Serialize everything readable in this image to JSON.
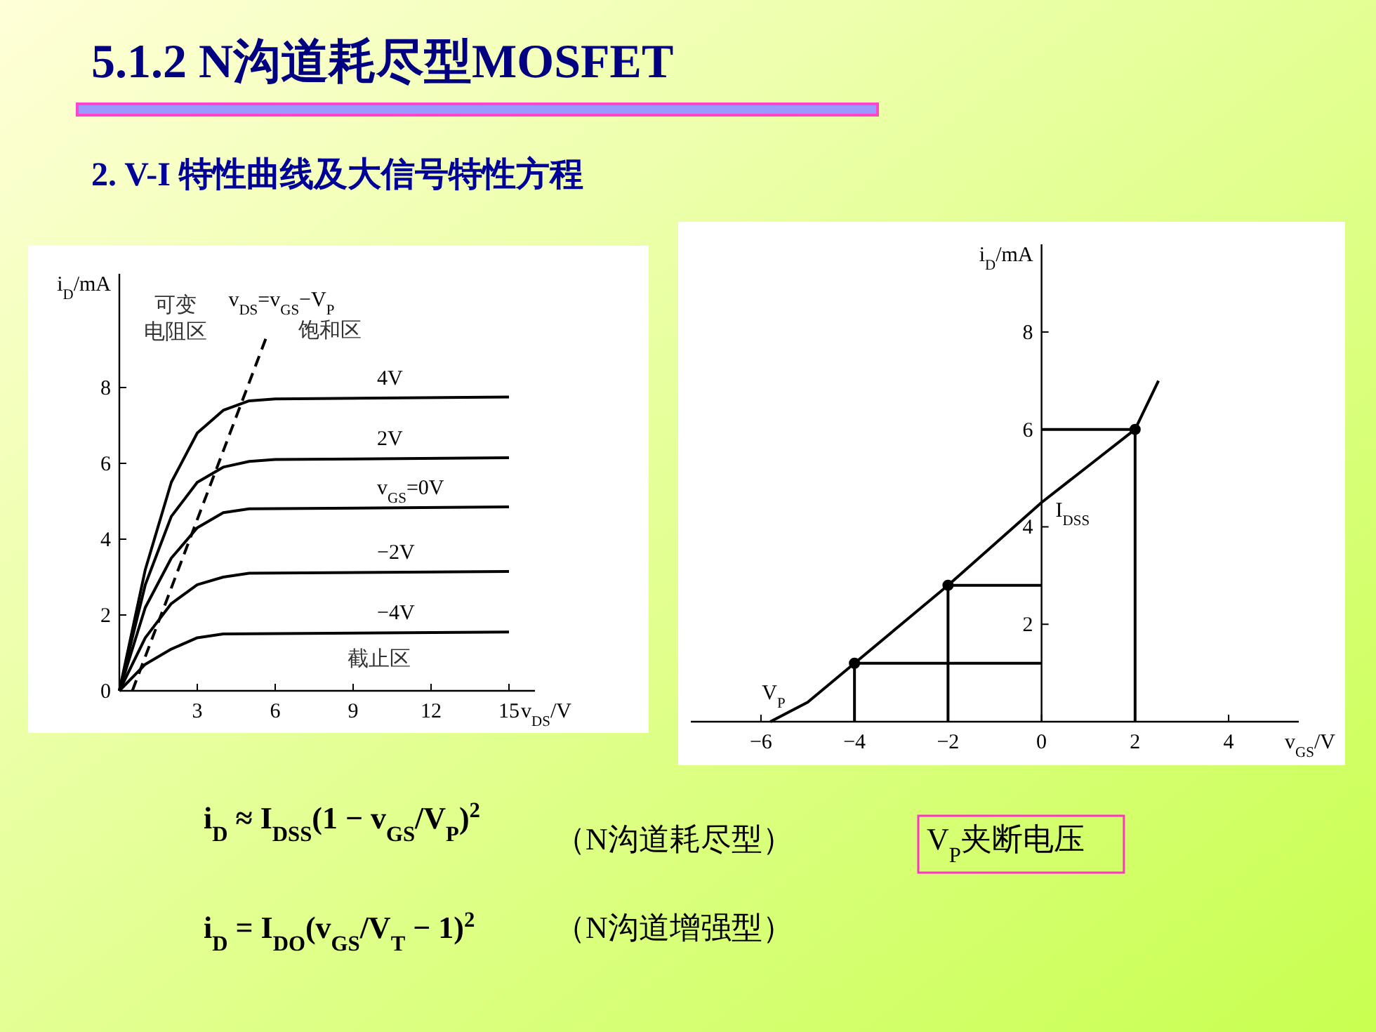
{
  "chart_data": [
    {
      "type": "other",
      "title": "5.1.2 N沟道耗尽型MOSFET",
      "subtitle": "2. V-I 特性曲线及大信号特性方程",
      "annotations": [
        "i$_{D}$ ≈ I$_{DSS}$(1 − v$_{GS}$/V$_{P}$)$^{2}$",
        "（N沟道耗尽型）",
        "V$_{P}$夹断电压",
        "i$_{D}$ = I$_{DO}$(v$_{GS}$/V$_{T}$ − 1)$^{2}$",
        "（N沟道增强型）"
      ]
    },
    {
      "type": "line",
      "xlabel": "v$_{DS}$/V",
      "ylabel": "i$_{D}$/mA",
      "xlim": [
        0,
        16
      ],
      "ylim": [
        0,
        11
      ],
      "xticks": [
        3,
        6,
        9,
        12,
        15
      ],
      "yticks": [
        0,
        2,
        4,
        6,
        8
      ],
      "annotations": [
        "可变",
        "电阻区",
        "饱和区",
        "截止区"
      ],
      "series": [
        {
          "name": "4V",
          "color": "#000000",
          "x": [
            0,
            1,
            2,
            3,
            4,
            5,
            6,
            15
          ],
          "values": [
            0,
            3.2,
            5.5,
            6.8,
            7.4,
            7.65,
            7.7,
            7.75
          ]
        },
        {
          "name": "2V",
          "color": "#000000",
          "x": [
            0,
            1,
            2,
            3,
            4,
            5,
            6,
            15
          ],
          "values": [
            0,
            2.8,
            4.6,
            5.5,
            5.9,
            6.05,
            6.1,
            6.15
          ]
        },
        {
          "name": "v$_{GS}$=0V",
          "color": "#000000",
          "x": [
            0,
            1,
            2,
            3,
            4,
            5,
            15
          ],
          "values": [
            0,
            2.2,
            3.5,
            4.3,
            4.7,
            4.8,
            4.85
          ]
        },
        {
          "name": "−2V",
          "color": "#000000",
          "x": [
            0,
            1,
            2,
            3,
            4,
            5,
            15
          ],
          "values": [
            0,
            1.4,
            2.3,
            2.8,
            3.0,
            3.1,
            3.15
          ]
        },
        {
          "name": "−4V",
          "color": "#000000",
          "x": [
            0,
            1,
            2,
            3,
            4,
            15
          ],
          "values": [
            0,
            0.7,
            1.1,
            1.4,
            1.5,
            1.55
          ]
        },
        {
          "name": "v$_{DS}$=v$_{GS}$−V$_{P}$",
          "color": "#000000",
          "line_style": "dashed",
          "x": [
            0.5,
            5.7
          ],
          "values": [
            0,
            9.4
          ]
        }
      ]
    },
    {
      "type": "line",
      "xlabel": "v$_{GS}$/V",
      "ylabel": "i$_{D}$/mA",
      "xlim": [
        -7.5,
        5.5
      ],
      "ylim": [
        0,
        9.8
      ],
      "xticks": [
        {
          "value": -6,
          "label": "−6"
        },
        {
          "value": -4,
          "label": "−4"
        },
        {
          "value": -2,
          "label": "−2"
        },
        0,
        2,
        4
      ],
      "yticks": [
        2,
        4,
        6,
        8
      ],
      "annotations": [
        {
          "text": "I$_{DSS}$",
          "x": 0,
          "y": 4.5
        },
        {
          "text": "V$_{P}$",
          "x": -5.8,
          "y": 0
        }
      ],
      "series": [
        {
          "color": "#000000",
          "x": [
            -5.8,
            -5,
            -4,
            -3,
            -2,
            -1,
            0,
            1,
            2,
            2.5
          ],
          "values": [
            0,
            0.4,
            1.2,
            2.0,
            2.8,
            3.65,
            4.5,
            5.25,
            6.0,
            7.0
          ]
        },
        {
          "type": "scatter",
          "marker": "circle",
          "color": "#000000",
          "x": [
            -4,
            -2,
            2
          ],
          "values": [
            1.2,
            2.8,
            6.0
          ]
        },
        {
          "color": "#000000",
          "x": [
            0,
            -4,
            -4
          ],
          "values": [
            1.2,
            1.2,
            0
          ]
        },
        {
          "color": "#000000",
          "x": [
            0,
            -2,
            -2
          ],
          "values": [
            2.8,
            2.8,
            0
          ]
        },
        {
          "color": "#000000",
          "x": [
            0,
            2,
            2
          ],
          "values": [
            6.0,
            6.0,
            0
          ]
        }
      ]
    }
  ]
}
